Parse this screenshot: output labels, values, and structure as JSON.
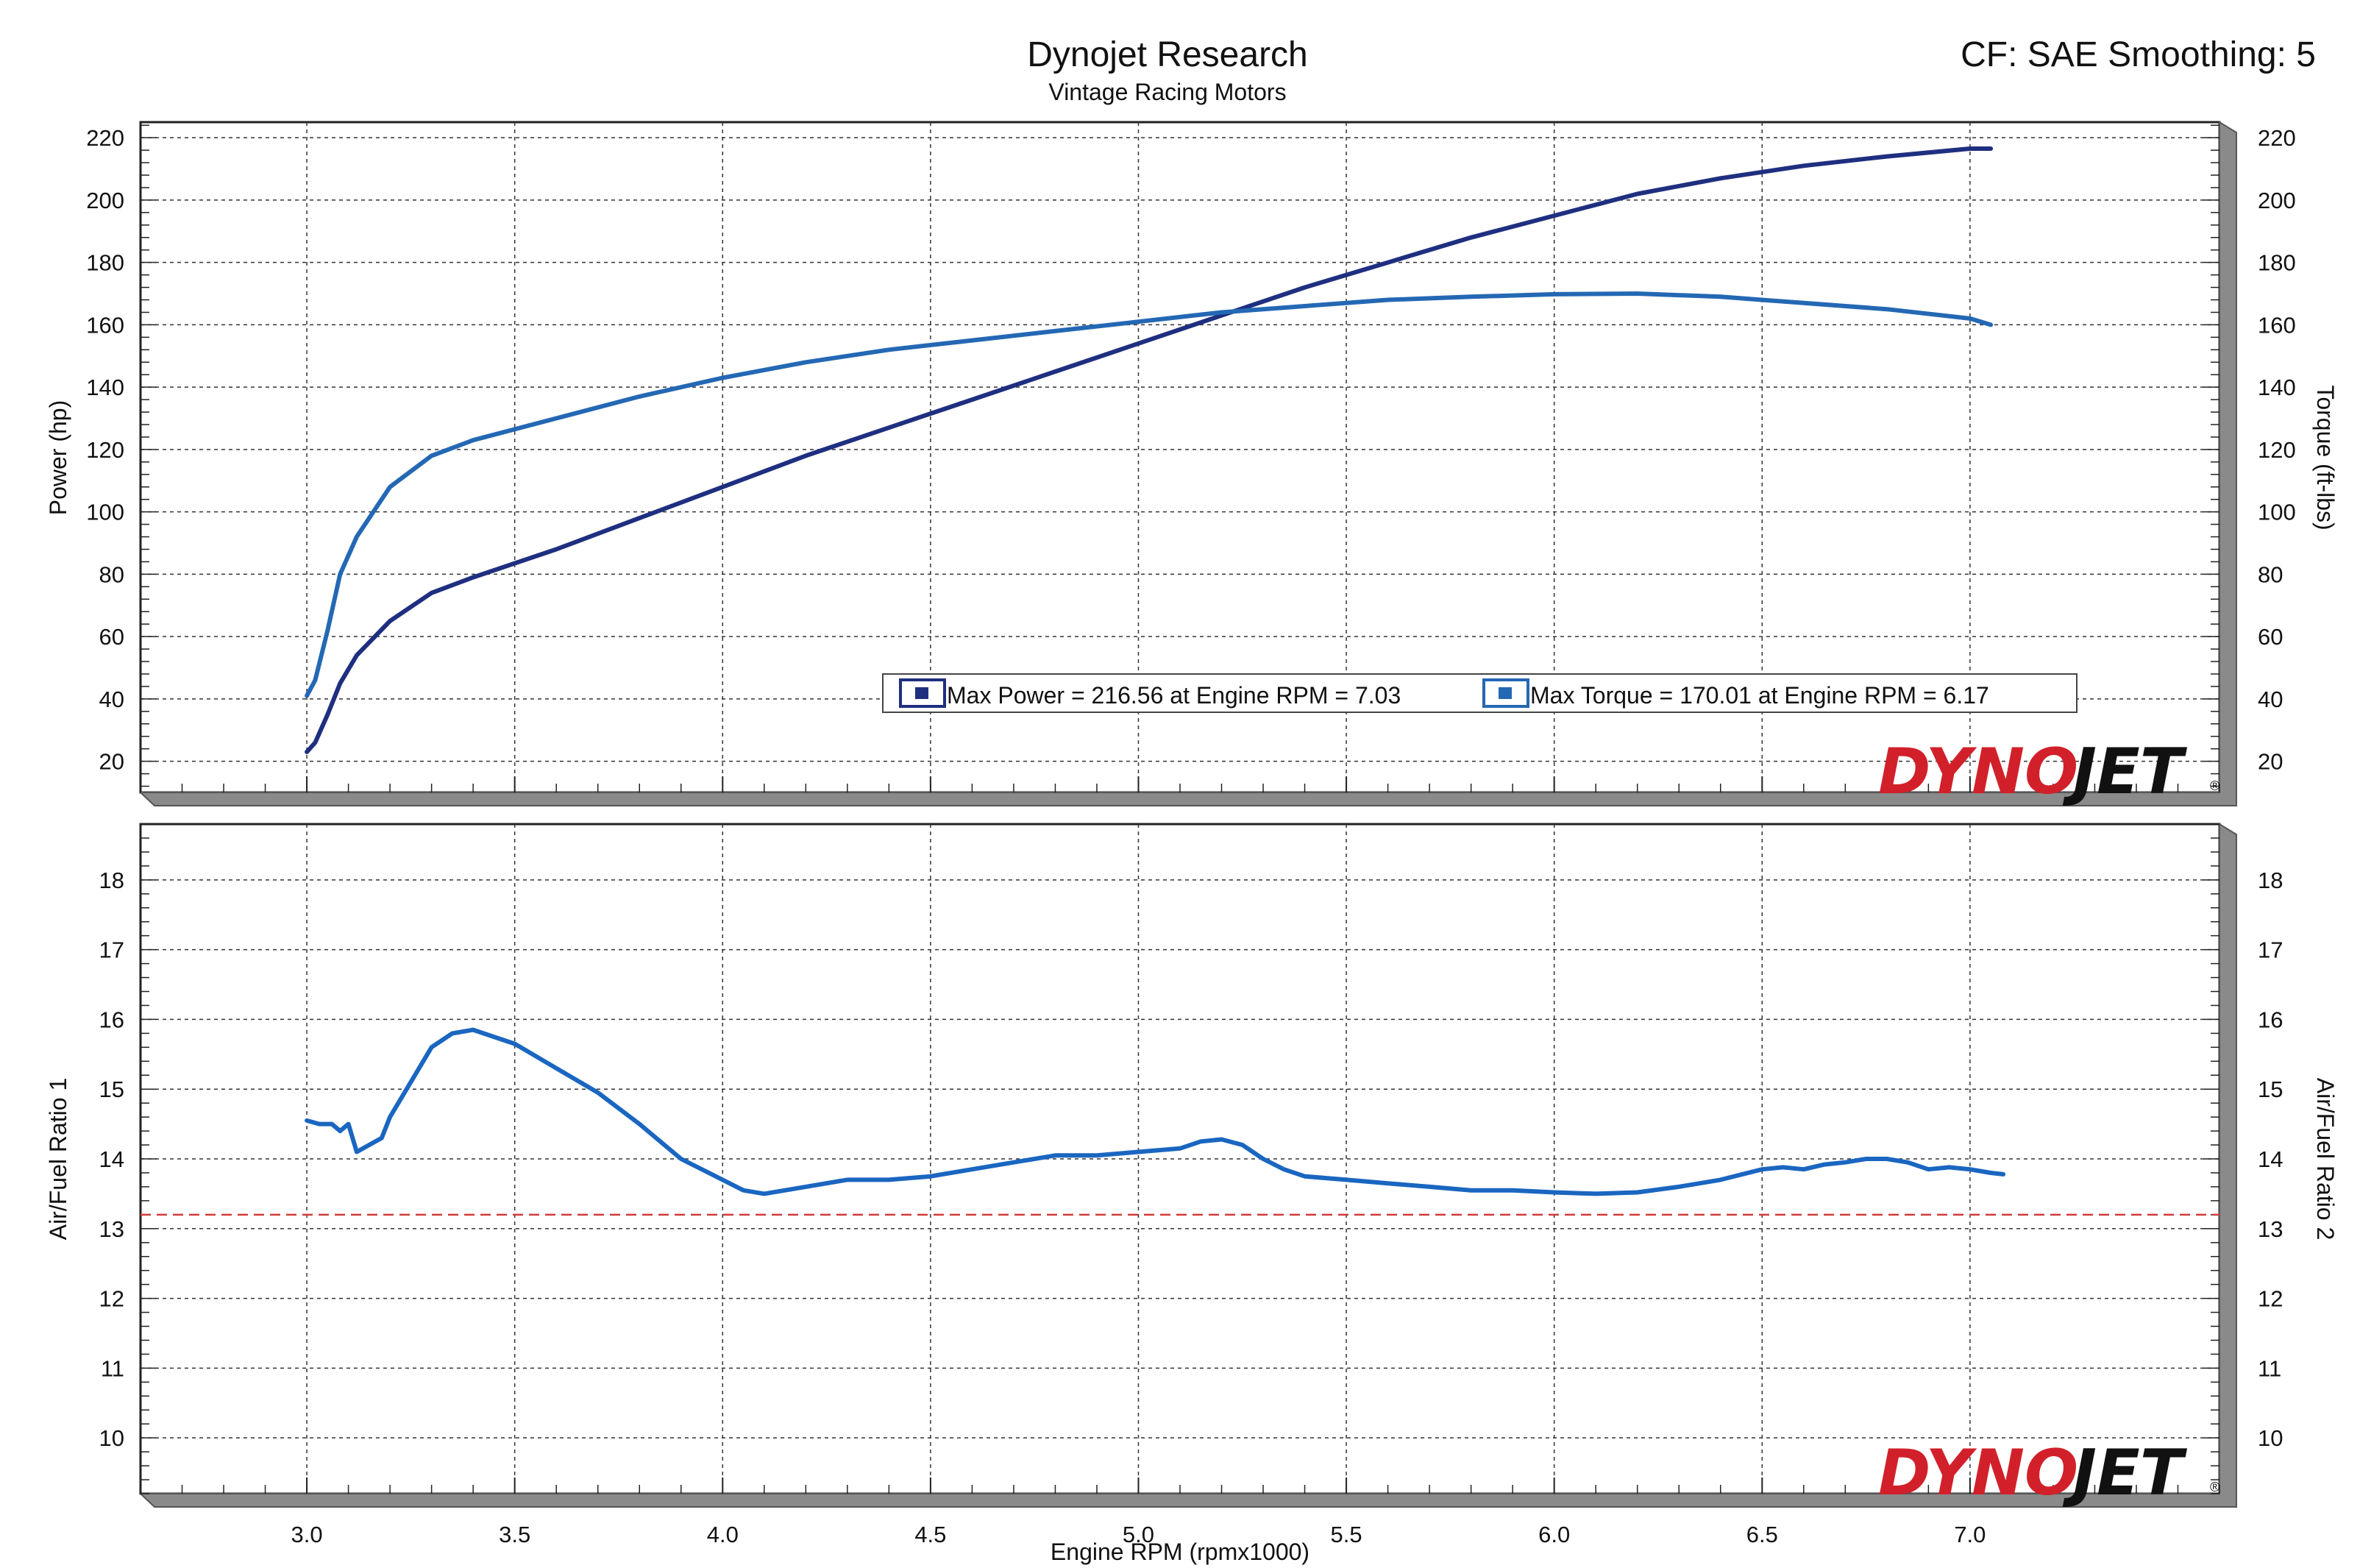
{
  "header": {
    "title": "Dynojet Research",
    "subtitle": "Vintage Racing Motors",
    "corner_text": "CF: SAE Smoothing: 5"
  },
  "brand": {
    "part1": "DYNO",
    "part2": "JET",
    "reg": "®"
  },
  "colors": {
    "power": "#1f2f80",
    "torque": "#2468b4",
    "afr": "#1a66c0",
    "reference_line": "#d23a3a",
    "grid": "#333333",
    "frame_shadow": "#7a7a7a"
  },
  "chart_data": [
    {
      "type": "line",
      "panel": "power-torque",
      "xlabel": "",
      "ylabel": "Power (hp)",
      "y2label": "Torque (ft-lbs)",
      "xlim": [
        2.6,
        7.6
      ],
      "ylim": [
        10,
        225
      ],
      "xticks": [
        3.0,
        3.5,
        4.0,
        4.5,
        5.0,
        5.5,
        6.0,
        6.5,
        7.0
      ],
      "yticks": [
        20,
        40,
        60,
        80,
        100,
        120,
        140,
        160,
        180,
        200,
        220
      ],
      "grid": true,
      "legend": {
        "position": "lower-right",
        "items": [
          "Max Power = 216.56 at Engine RPM = 7.03",
          "Max Torque = 170.01 at Engine RPM = 6.17"
        ]
      },
      "series": [
        {
          "name": "Power",
          "axis": "left",
          "x": [
            3.0,
            3.02,
            3.05,
            3.08,
            3.12,
            3.2,
            3.3,
            3.4,
            3.6,
            3.8,
            4.0,
            4.2,
            4.4,
            4.6,
            4.8,
            5.0,
            5.2,
            5.4,
            5.6,
            5.8,
            6.0,
            6.2,
            6.4,
            6.6,
            6.8,
            7.0,
            7.05
          ],
          "y": [
            23,
            26,
            35,
            45,
            54,
            65,
            74,
            79,
            88,
            98,
            108,
            118,
            127,
            136,
            145,
            154,
            163,
            172,
            180,
            188,
            195,
            202,
            207,
            211,
            214,
            216.5,
            216.5
          ]
        },
        {
          "name": "Torque",
          "axis": "right",
          "x": [
            3.0,
            3.02,
            3.05,
            3.08,
            3.12,
            3.2,
            3.3,
            3.4,
            3.6,
            3.8,
            4.0,
            4.2,
            4.4,
            4.6,
            4.8,
            5.0,
            5.2,
            5.4,
            5.6,
            5.8,
            6.0,
            6.2,
            6.4,
            6.6,
            6.8,
            7.0,
            7.05
          ],
          "y": [
            41,
            46,
            62,
            80,
            92,
            108,
            118,
            123,
            130,
            137,
            143,
            148,
            152,
            155,
            158,
            161,
            164,
            166,
            168,
            169,
            169.8,
            170,
            169,
            167,
            165,
            162,
            160
          ]
        }
      ]
    },
    {
      "type": "line",
      "panel": "afr",
      "xlabel": "Engine RPM (rpmx1000)",
      "ylabel": "Air/Fuel Ratio 1",
      "y2label": "Air/Fuel Ratio 2",
      "xlim": [
        2.6,
        7.6
      ],
      "ylim": [
        9.2,
        18.8
      ],
      "xticks": [
        3.0,
        3.5,
        4.0,
        4.5,
        5.0,
        5.5,
        6.0,
        6.5,
        7.0
      ],
      "yticks": [
        10,
        11,
        12,
        13,
        14,
        15,
        16,
        17,
        18
      ],
      "grid": true,
      "reference_line": 13.2,
      "series": [
        {
          "name": "Air/Fuel Ratio 1",
          "x": [
            3.0,
            3.03,
            3.06,
            3.08,
            3.1,
            3.12,
            3.15,
            3.18,
            3.2,
            3.25,
            3.3,
            3.35,
            3.4,
            3.45,
            3.5,
            3.6,
            3.7,
            3.8,
            3.9,
            4.0,
            4.05,
            4.1,
            4.15,
            4.2,
            4.3,
            4.4,
            4.5,
            4.6,
            4.7,
            4.8,
            4.9,
            5.0,
            5.1,
            5.15,
            5.2,
            5.25,
            5.3,
            5.35,
            5.4,
            5.5,
            5.6,
            5.7,
            5.8,
            5.9,
            6.0,
            6.1,
            6.2,
            6.3,
            6.4,
            6.5,
            6.55,
            6.6,
            6.65,
            6.7,
            6.75,
            6.8,
            6.85,
            6.9,
            6.95,
            7.0,
            7.05,
            7.08
          ],
          "y": [
            14.55,
            14.5,
            14.5,
            14.4,
            14.5,
            14.1,
            14.2,
            14.3,
            14.6,
            15.1,
            15.6,
            15.8,
            15.85,
            15.75,
            15.65,
            15.3,
            14.95,
            14.5,
            14.0,
            13.7,
            13.55,
            13.5,
            13.55,
            13.6,
            13.7,
            13.7,
            13.75,
            13.85,
            13.95,
            14.05,
            14.05,
            14.1,
            14.15,
            14.25,
            14.28,
            14.2,
            14.0,
            13.85,
            13.75,
            13.7,
            13.65,
            13.6,
            13.55,
            13.55,
            13.52,
            13.5,
            13.52,
            13.6,
            13.7,
            13.85,
            13.88,
            13.85,
            13.92,
            13.95,
            14.0,
            14.0,
            13.95,
            13.85,
            13.88,
            13.85,
            13.8,
            13.78
          ]
        }
      ]
    }
  ]
}
